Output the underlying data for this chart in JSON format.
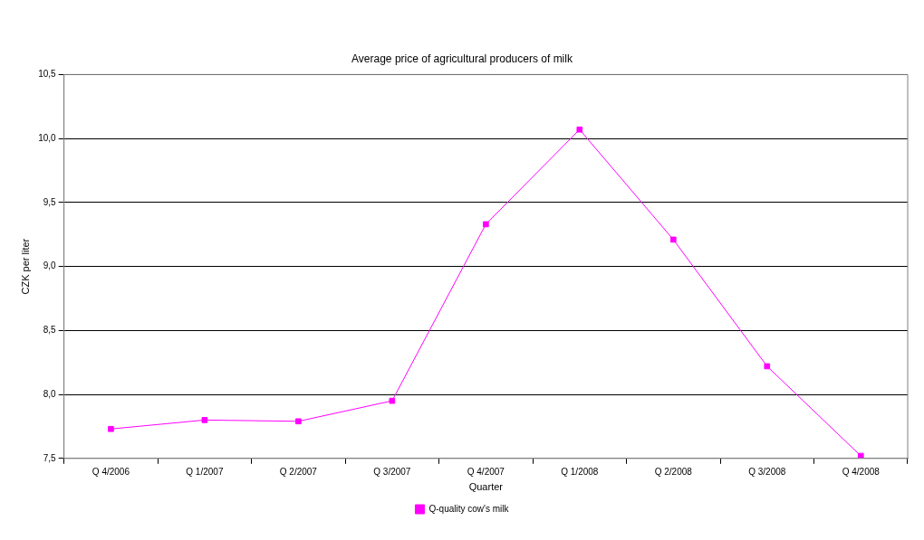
{
  "chart_data": {
    "type": "line",
    "title": "Average price of agricultural producers of milk",
    "xlabel": "Quarter",
    "ylabel": "CZK per liter",
    "categories": [
      "Q 4/2006",
      "Q 1/2007",
      "Q 2/2007",
      "Q 3/2007",
      "Q 4/2007",
      "Q 1/2008",
      "Q 2/2008",
      "Q 3/2008",
      "Q 4/2008"
    ],
    "series": [
      {
        "name": "Q-quality cow's milk",
        "color": "#ff00ff",
        "values": [
          7.73,
          7.8,
          7.79,
          7.95,
          9.33,
          10.07,
          9.21,
          8.22,
          7.52
        ]
      }
    ],
    "ylim": [
      7.5,
      10.5
    ],
    "yticks": [
      {
        "value": 7.5,
        "label": "7,5"
      },
      {
        "value": 8.0,
        "label": "8,0"
      },
      {
        "value": 8.5,
        "label": "8,5"
      },
      {
        "value": 9.0,
        "label": "9,0"
      },
      {
        "value": 9.5,
        "label": "9,5"
      },
      {
        "value": 10.0,
        "label": "10,0"
      },
      {
        "value": 10.5,
        "label": "10,5"
      }
    ],
    "grid": "y",
    "legend": "bottom",
    "marker": "square",
    "line_style": "solid"
  }
}
